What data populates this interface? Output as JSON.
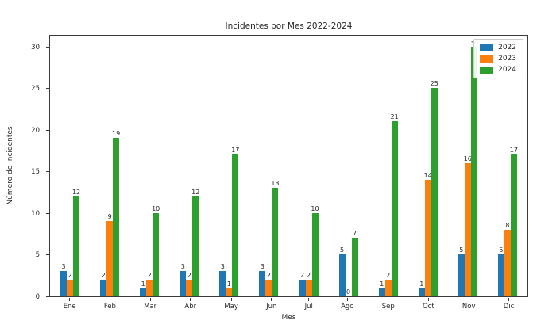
{
  "chart_data": {
    "type": "bar",
    "title": "Incidentes por Mes 2022-2024",
    "xlabel": "Mes",
    "ylabel": "Número de Incidentes",
    "categories": [
      "Ene",
      "Feb",
      "Mar",
      "Abr",
      "May",
      "Jun",
      "Jul",
      "Ago",
      "Sep",
      "Oct",
      "Nov",
      "Dic"
    ],
    "series": [
      {
        "name": "2022",
        "color": "#1f77b4",
        "values": [
          3,
          2,
          1,
          3,
          3,
          3,
          2,
          5,
          1,
          1,
          5,
          5
        ]
      },
      {
        "name": "2023",
        "color": "#ff7f0e",
        "values": [
          2,
          9,
          2,
          2,
          1,
          2,
          2,
          0,
          2,
          14,
          16,
          8
        ]
      },
      {
        "name": "2024",
        "color": "#2ca02c",
        "values": [
          12,
          19,
          10,
          12,
          17,
          13,
          10,
          7,
          21,
          25,
          30,
          17
        ]
      }
    ],
    "ylim": [
      0,
      31.5
    ],
    "yticks": [
      0,
      5,
      10,
      15,
      20,
      25,
      30
    ],
    "legend_position": "upper right",
    "grid": false,
    "bar_value_labels": true
  }
}
